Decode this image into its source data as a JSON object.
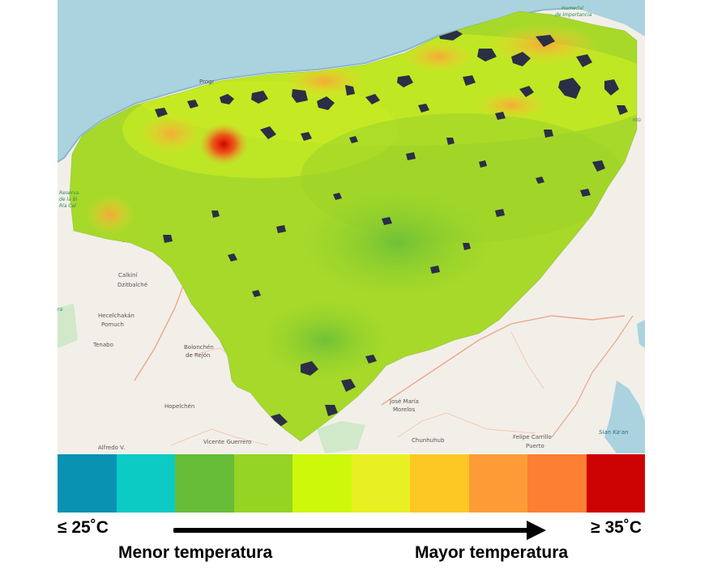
{
  "map": {
    "places": [
      {
        "name": "Calkiní",
        "kind": "town"
      },
      {
        "name": "Dzitbalché",
        "kind": "town"
      },
      {
        "name": "Hecelchakán",
        "kind": "town"
      },
      {
        "name": "Pomuch",
        "kind": "town"
      },
      {
        "name": "Tenabo",
        "kind": "town"
      },
      {
        "name": "Bolonchén",
        "kind": "town"
      },
      {
        "name": "de Rejón",
        "kind": "town"
      },
      {
        "name": "Hopelchén",
        "kind": "town"
      },
      {
        "name": "Vicente Guerrero",
        "kind": "town"
      },
      {
        "name": "Alfredo V.",
        "kind": "town"
      },
      {
        "name": "José María",
        "kind": "town"
      },
      {
        "name": "Morelos",
        "kind": "town"
      },
      {
        "name": "Chunhuhub",
        "kind": "town"
      },
      {
        "name": "Felipe Carrillo",
        "kind": "town"
      },
      {
        "name": "Puerto",
        "kind": "town"
      },
      {
        "name": "Sian Ka'an",
        "kind": "reserve"
      },
      {
        "name": "Humedal",
        "kind": "wetland"
      },
      {
        "name": "de Importancia",
        "kind": "wetland"
      },
      {
        "name": "Progr",
        "kind": "town"
      },
      {
        "name": "Reserva",
        "kind": "reserve"
      },
      {
        "name": "de la Bi",
        "kind": "reserve"
      },
      {
        "name": "Ría Cel",
        "kind": "reserve"
      },
      {
        "name": "ra",
        "kind": "reserve"
      },
      {
        "name": "ntú",
        "kind": "town"
      }
    ]
  },
  "legend": {
    "colors": [
      "#0a92b2",
      "#0ccbc4",
      "#67bd37",
      "#95d423",
      "#cdf80a",
      "#e8f023",
      "#fdc824",
      "#fd9c37",
      "#fc7f33",
      "#cd0202"
    ],
    "min_label": "≤ 25˚C",
    "max_label": "≥ 35˚C",
    "low_caption": "Menor temperatura",
    "high_caption": "Mayor temperatura"
  }
}
